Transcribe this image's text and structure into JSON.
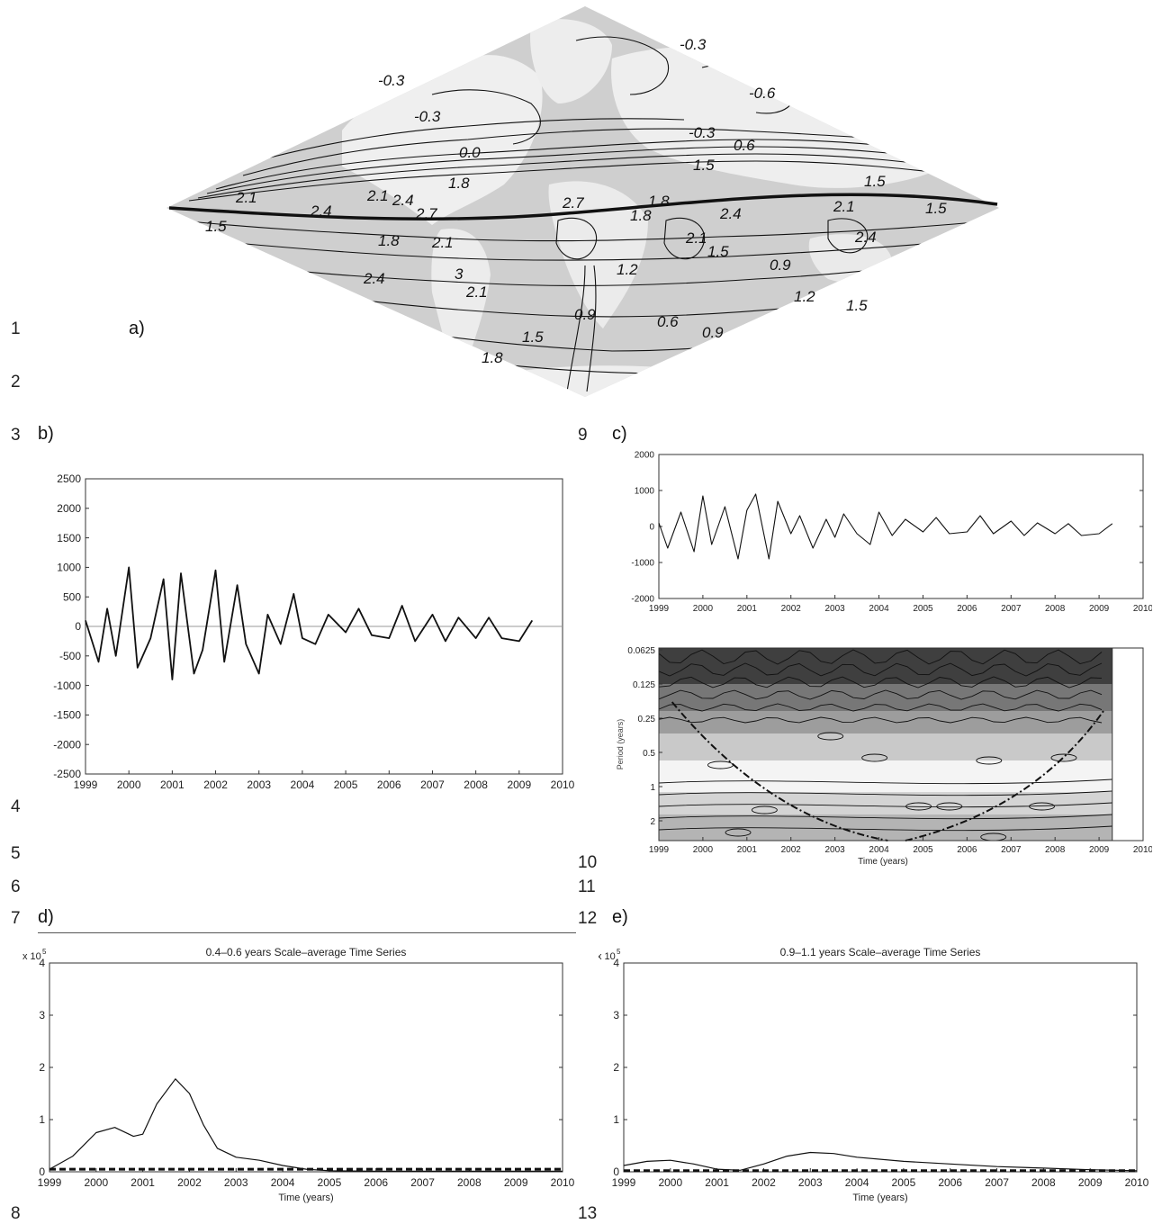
{
  "line_numbers": [
    "1",
    "2",
    "3",
    "4",
    "5",
    "6",
    "7",
    "8",
    "9",
    "10",
    "11",
    "12",
    "13"
  ],
  "panel_labels": {
    "a": "a)",
    "b": "b)",
    "c": "c)",
    "d": "d)",
    "e": "e)"
  },
  "map": {
    "contour_labels": [
      "-0.3",
      "-0.3",
      "-0.3",
      "-0.6",
      "-0.3",
      "0.0",
      "0.6",
      "1.5",
      "1.8",
      "2.1",
      "2.4",
      "2.1",
      "2.4",
      "2.7",
      "2.7",
      "1.8",
      "2.4",
      "2.1",
      "1.5",
      "1.5",
      "1.5",
      "1.8",
      "2.1",
      "2.4",
      "2.1",
      "1.5",
      "1.2",
      "0.9",
      "2.4",
      "3",
      "2.1",
      "0.9",
      "0.6",
      "0.9",
      "1.2",
      "1.5",
      "1.5",
      "1.8",
      "1.8"
    ]
  },
  "chart_data": [
    {
      "id": "b",
      "type": "line",
      "title": "",
      "xlabel": "",
      "ylabel": "",
      "x_ticks": [
        "1999",
        "2000",
        "2001",
        "2002",
        "2003",
        "2004",
        "2005",
        "2006",
        "2007",
        "2008",
        "2009",
        "2010"
      ],
      "y_ticks": [
        "2500",
        "2000",
        "1500",
        "1000",
        "500",
        "0",
        "-500",
        "-1000",
        "-1500",
        "-2000",
        "-2500"
      ],
      "xlim": [
        1999,
        2010
      ],
      "ylim": [
        -2500,
        2500
      ],
      "series": [
        {
          "x": [
            1999.0,
            1999.3,
            1999.5,
            1999.7,
            2000.0,
            2000.2,
            2000.5,
            2000.8,
            2001.0,
            2001.2,
            2001.5,
            2001.7,
            2002.0,
            2002.2,
            2002.5,
            2002.7,
            2003.0,
            2003.2,
            2003.5,
            2003.8,
            2004.0,
            2004.3,
            2004.6,
            2005.0,
            2005.3,
            2005.6,
            2006.0,
            2006.3,
            2006.6,
            2007.0,
            2007.3,
            2007.6,
            2008.0,
            2008.3,
            2008.6,
            2009.0,
            2009.3
          ],
          "y": [
            100,
            -600,
            300,
            -500,
            1000,
            -700,
            -200,
            800,
            -900,
            900,
            -800,
            -400,
            950,
            -600,
            700,
            -300,
            -800,
            200,
            -300,
            550,
            -200,
            -300,
            200,
            -100,
            300,
            -150,
            -200,
            350,
            -250,
            200,
            -250,
            150,
            -200,
            150,
            -200,
            -250,
            100
          ]
        }
      ]
    },
    {
      "id": "c-top",
      "type": "line",
      "title": "",
      "xlabel": "",
      "ylabel": "",
      "x_ticks": [
        "1999",
        "2000",
        "2001",
        "2002",
        "2003",
        "2004",
        "2005",
        "2006",
        "2007",
        "2008",
        "2009",
        "2010"
      ],
      "y_ticks": [
        "2000",
        "1000",
        "0",
        "-1000",
        "-2000"
      ],
      "xlim": [
        1999,
        2010
      ],
      "ylim": [
        -2000,
        2000
      ],
      "series": [
        {
          "x": [
            1999.0,
            1999.2,
            1999.5,
            1999.8,
            2000.0,
            2000.2,
            2000.5,
            2000.8,
            2001.0,
            2001.2,
            2001.5,
            2001.7,
            2002.0,
            2002.2,
            2002.5,
            2002.8,
            2003.0,
            2003.2,
            2003.5,
            2003.8,
            2004.0,
            2004.3,
            2004.6,
            2005.0,
            2005.3,
            2005.6,
            2006.0,
            2006.3,
            2006.6,
            2007.0,
            2007.3,
            2007.6,
            2008.0,
            2008.3,
            2008.6,
            2009.0,
            2009.3
          ],
          "y": [
            100,
            -600,
            400,
            -700,
            850,
            -500,
            550,
            -900,
            450,
            900,
            -900,
            700,
            -200,
            300,
            -600,
            200,
            -300,
            350,
            -200,
            -500,
            400,
            -250,
            200,
            -150,
            250,
            -200,
            -150,
            300,
            -200,
            150,
            -250,
            100,
            -200,
            80,
            -250,
            -200,
            80
          ]
        }
      ]
    },
    {
      "id": "c-bottom",
      "type": "heatmap",
      "title": "",
      "xlabel": "Time (years)",
      "ylabel": "Period (years)",
      "x_ticks": [
        "1999",
        "2000",
        "2001",
        "2002",
        "2003",
        "2004",
        "2005",
        "2006",
        "2007",
        "2008",
        "2009",
        "2010"
      ],
      "y_ticks": [
        "0.0625",
        "0.125",
        "0.25",
        "0.5",
        "1",
        "2"
      ],
      "xlim": [
        1999,
        2010
      ]
    },
    {
      "id": "d",
      "type": "line",
      "title": "0.4–0.6 years Scale–average Time Series",
      "xlabel": "Time (years)",
      "ylabel": "",
      "y_multiplier": "x 10",
      "y_exponent": "5",
      "x_ticks": [
        "1999",
        "2000",
        "2001",
        "2002",
        "2003",
        "2004",
        "2005",
        "2006",
        "2007",
        "2008",
        "2009",
        "2010"
      ],
      "y_ticks": [
        "0",
        "1",
        "2",
        "3",
        "4"
      ],
      "xlim": [
        1999,
        2010
      ],
      "ylim": [
        0,
        4
      ],
      "series": [
        {
          "x": [
            1999.0,
            1999.5,
            2000.0,
            2000.4,
            2000.8,
            2001.0,
            2001.3,
            2001.7,
            2002.0,
            2002.3,
            2002.6,
            2003.0,
            2003.5,
            2004.0,
            2004.5,
            2005.0,
            2006.0,
            2007.0,
            2008.0,
            2009.0,
            2010.0
          ],
          "y": [
            0.05,
            0.3,
            0.75,
            0.85,
            0.68,
            0.72,
            1.3,
            1.78,
            1.5,
            0.9,
            0.45,
            0.28,
            0.22,
            0.12,
            0.05,
            0.02,
            0.01,
            0.01,
            0.01,
            0.01,
            0.01
          ]
        },
        {
          "x": [
            1999.0,
            2010.0
          ],
          "y": [
            0.05,
            0.05
          ]
        }
      ]
    },
    {
      "id": "e",
      "type": "line",
      "title": "0.9–1.1 years Scale–average Time Series",
      "xlabel": "Time (years)",
      "ylabel": "",
      "y_multiplier": "x 10",
      "y_exponent": "5",
      "x_ticks": [
        "1999",
        "2000",
        "2001",
        "2002",
        "2003",
        "2004",
        "2005",
        "2006",
        "2007",
        "2008",
        "2009",
        "2010"
      ],
      "y_ticks": [
        "0",
        "1",
        "2",
        "3",
        "4"
      ],
      "xlim": [
        1999,
        2010
      ],
      "ylim": [
        0,
        4
      ],
      "series": [
        {
          "x": [
            1999.0,
            1999.5,
            2000.0,
            2000.5,
            2001.0,
            2001.5,
            2002.0,
            2002.5,
            2003.0,
            2003.5,
            2004.0,
            2005.0,
            2006.0,
            2007.0,
            2008.0,
            2009.0,
            2010.0
          ],
          "y": [
            0.12,
            0.2,
            0.22,
            0.15,
            0.05,
            0.03,
            0.15,
            0.3,
            0.37,
            0.35,
            0.28,
            0.2,
            0.15,
            0.1,
            0.07,
            0.04,
            0.02
          ]
        },
        {
          "x": [
            1999.0,
            2010.0
          ],
          "y": [
            0.02,
            0.02
          ]
        }
      ]
    }
  ]
}
